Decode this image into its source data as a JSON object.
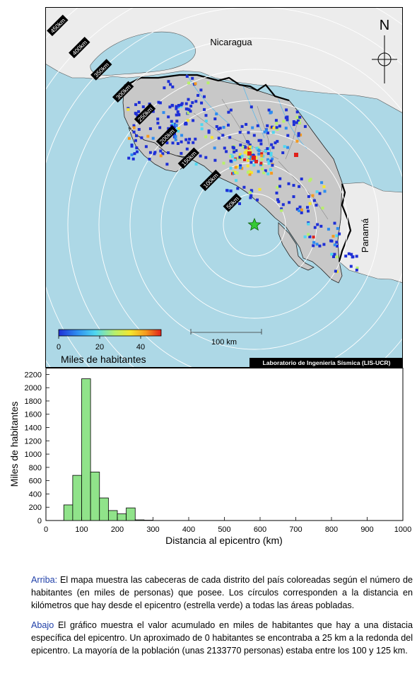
{
  "map": {
    "countries": [
      "Nicaragua",
      "Panamá"
    ],
    "north_label": "N",
    "ring_labels": [
      "50km",
      "100km",
      "150km",
      "200km",
      "250km",
      "300km",
      "350km",
      "400km",
      "450km"
    ],
    "scale_bar_label": "100 km",
    "credit": "Laboratorio de Ingeniería Sísmica (LIS-UCR)",
    "colorbar": {
      "ticks": [
        "0",
        "20",
        "40"
      ],
      "label": "Miles de habitantes",
      "colors": [
        "#1e2fd6",
        "#2d8cf0",
        "#4fd8f0",
        "#b8f06b",
        "#f5e62e",
        "#f59a1f",
        "#e0201b"
      ]
    },
    "colors": {
      "sea": "#add8e6",
      "costa_rica": "#c8c8c8",
      "neighbors": "#ececec",
      "epicenter": "#35c935"
    }
  },
  "chart_data": {
    "type": "bar",
    "bar_color": "#90e38a",
    "xlabel": "Distancia al epicentro (km)",
    "ylabel": "Miles de habitantes",
    "xlim": [
      0,
      1000
    ],
    "ylim": [
      0,
      2300
    ],
    "xticks": [
      0,
      100,
      200,
      300,
      400,
      500,
      600,
      700,
      800,
      900,
      1000
    ],
    "yticks": [
      0,
      200,
      400,
      600,
      800,
      1000,
      1200,
      1400,
      1600,
      1800,
      2000,
      2200
    ],
    "bin_width": 25,
    "bins": [
      {
        "x0": 25,
        "x1": 50,
        "value": 0
      },
      {
        "x0": 50,
        "x1": 75,
        "value": 235
      },
      {
        "x0": 75,
        "x1": 100,
        "value": 680
      },
      {
        "x0": 100,
        "x1": 125,
        "value": 2134
      },
      {
        "x0": 125,
        "x1": 150,
        "value": 730
      },
      {
        "x0": 150,
        "x1": 175,
        "value": 340
      },
      {
        "x0": 175,
        "x1": 200,
        "value": 150
      },
      {
        "x0": 200,
        "x1": 225,
        "value": 100
      },
      {
        "x0": 225,
        "x1": 250,
        "value": 190
      },
      {
        "x0": 250,
        "x1": 275,
        "value": 10
      },
      {
        "x0": 275,
        "x1": 300,
        "value": 5
      },
      {
        "x0": 300,
        "x1": 325,
        "value": 0
      }
    ]
  },
  "caption": {
    "top_key": "Arriba:",
    "top_text": " El mapa muestra las cabeceras de cada distrito del país coloreadas según el número de habitantes (en miles de personas) que posee.  Los círculos corresponden a la distancia en kilómetros que hay desde el epicentro (estrella verde) a todas las áreas pobladas.",
    "bottom_key": "Abajo",
    "bottom_text": " El gráfico muestra el valor acumulado en miles de habitantes que hay a una distacia específica del epicentro.  Un aproximado de 0 habitantes se encontraba a 25 km a la redonda del epicentro.  La mayoría de la población (unas 2133770 personas) estaba entre los 100 y 125 km."
  }
}
